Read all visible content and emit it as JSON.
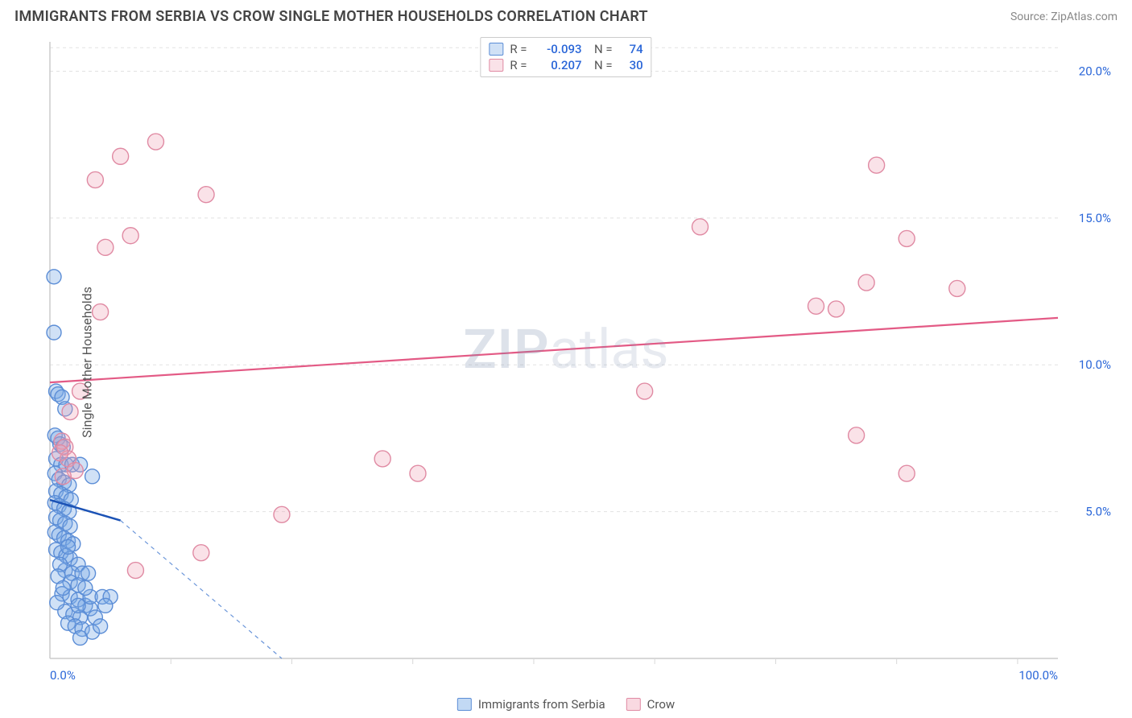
{
  "header": {
    "title": "IMMIGRANTS FROM SERBIA VS CROW SINGLE MOTHER HOUSEHOLDS CORRELATION CHART",
    "source_label": "Source:",
    "source_name": "ZipAtlas.com"
  },
  "ylabel": "Single Mother Households",
  "watermark": {
    "part1": "ZIP",
    "part2": "atlas"
  },
  "chart": {
    "type": "scatter",
    "background_color": "#ffffff",
    "grid_color": "#e2e2e2",
    "axis_color": "#cccccc",
    "tick_label_color": "#2a66d8",
    "xlim": [
      0,
      100
    ],
    "ylim": [
      0,
      21
    ],
    "xtick_values": [
      0,
      100
    ],
    "xtick_labels": [
      "0.0%",
      "100.0%"
    ],
    "xminor_positions": [
      12,
      24,
      36,
      48,
      60,
      72,
      84,
      96
    ],
    "ytick_values": [
      5,
      10,
      15,
      20
    ],
    "ytick_labels": [
      "5.0%",
      "10.0%",
      "15.0%",
      "20.0%"
    ],
    "series": [
      {
        "key": "serbia",
        "label": "Immigrants from Serbia",
        "fill_color": "rgba(120,170,230,0.35)",
        "stroke_color": "#5b8dd6",
        "marker_radius": 9,
        "R": "-0.093",
        "N": "74",
        "trend": {
          "solid": {
            "x1": 0,
            "y1": 5.4,
            "x2": 7,
            "y2": 4.7,
            "color": "#1b52b5",
            "width": 2.5
          },
          "dashed": {
            "x1": 7,
            "y1": 4.7,
            "x2": 23,
            "y2": 0,
            "color": "#6a95d9",
            "width": 1.2,
            "dash": "5 5"
          }
        },
        "points": [
          [
            0.4,
            13.0
          ],
          [
            0.4,
            11.1
          ],
          [
            0.6,
            9.1
          ],
          [
            0.8,
            9.0
          ],
          [
            1.2,
            8.9
          ],
          [
            1.5,
            8.5
          ],
          [
            0.5,
            7.6
          ],
          [
            0.8,
            7.5
          ],
          [
            1.0,
            7.3
          ],
          [
            1.3,
            7.2
          ],
          [
            0.6,
            6.8
          ],
          [
            1.1,
            6.6
          ],
          [
            1.6,
            6.6
          ],
          [
            2.2,
            6.6
          ],
          [
            3.0,
            6.6
          ],
          [
            4.2,
            6.2
          ],
          [
            0.5,
            6.3
          ],
          [
            0.9,
            6.1
          ],
          [
            1.4,
            6.0
          ],
          [
            1.9,
            5.9
          ],
          [
            0.6,
            5.7
          ],
          [
            1.1,
            5.6
          ],
          [
            1.6,
            5.5
          ],
          [
            2.1,
            5.4
          ],
          [
            0.5,
            5.3
          ],
          [
            0.9,
            5.2
          ],
          [
            1.4,
            5.1
          ],
          [
            1.9,
            5.0
          ],
          [
            0.6,
            4.8
          ],
          [
            1.0,
            4.7
          ],
          [
            1.5,
            4.6
          ],
          [
            2.0,
            4.5
          ],
          [
            0.5,
            4.3
          ],
          [
            0.9,
            4.2
          ],
          [
            1.4,
            4.1
          ],
          [
            1.8,
            4.0
          ],
          [
            2.3,
            3.9
          ],
          [
            0.6,
            3.7
          ],
          [
            1.1,
            3.6
          ],
          [
            1.6,
            3.5
          ],
          [
            2.0,
            3.4
          ],
          [
            2.8,
            3.2
          ],
          [
            1.5,
            3.0
          ],
          [
            2.2,
            2.9
          ],
          [
            3.2,
            2.9
          ],
          [
            2.0,
            2.6
          ],
          [
            2.8,
            2.5
          ],
          [
            3.8,
            2.9
          ],
          [
            1.2,
            2.2
          ],
          [
            2.0,
            2.1
          ],
          [
            2.8,
            2.0
          ],
          [
            3.5,
            1.8
          ],
          [
            1.5,
            1.6
          ],
          [
            2.3,
            1.5
          ],
          [
            3.0,
            1.4
          ],
          [
            4.0,
            1.7
          ],
          [
            1.8,
            1.2
          ],
          [
            2.5,
            1.1
          ],
          [
            3.2,
            1.0
          ],
          [
            2.8,
            1.8
          ],
          [
            4.0,
            2.1
          ],
          [
            5.2,
            2.1
          ],
          [
            6.0,
            2.1
          ],
          [
            3.5,
            2.4
          ],
          [
            4.5,
            1.4
          ],
          [
            5.5,
            1.8
          ],
          [
            4.2,
            0.9
          ],
          [
            3.0,
            0.7
          ],
          [
            5.0,
            1.1
          ],
          [
            1.0,
            3.2
          ],
          [
            1.8,
            3.8
          ],
          [
            0.8,
            2.8
          ],
          [
            1.3,
            2.4
          ],
          [
            0.7,
            1.9
          ]
        ]
      },
      {
        "key": "crow",
        "label": "Crow",
        "fill_color": "rgba(240,160,180,0.30)",
        "stroke_color": "#e08aa3",
        "marker_radius": 10,
        "R": "0.207",
        "N": "30",
        "trend": {
          "solid": {
            "x1": 0,
            "y1": 9.4,
            "x2": 100,
            "y2": 11.6,
            "color": "#e35a85",
            "width": 2.2
          }
        },
        "points": [
          [
            10.5,
            17.6
          ],
          [
            7.0,
            17.1
          ],
          [
            4.5,
            16.3
          ],
          [
            15.5,
            15.8
          ],
          [
            8.0,
            14.4
          ],
          [
            5.5,
            14.0
          ],
          [
            5.0,
            11.8
          ],
          [
            3.0,
            9.1
          ],
          [
            2.0,
            8.4
          ],
          [
            1.2,
            7.4
          ],
          [
            1.5,
            7.2
          ],
          [
            1.8,
            6.8
          ],
          [
            2.5,
            6.4
          ],
          [
            33.0,
            6.8
          ],
          [
            36.5,
            6.3
          ],
          [
            23.0,
            4.9
          ],
          [
            15.0,
            3.6
          ],
          [
            8.5,
            3.0
          ],
          [
            64.5,
            14.7
          ],
          [
            76.0,
            12.0
          ],
          [
            81.0,
            12.8
          ],
          [
            85.0,
            14.3
          ],
          [
            90.0,
            12.6
          ],
          [
            82.0,
            16.8
          ],
          [
            59.0,
            9.1
          ],
          [
            80.0,
            7.6
          ],
          [
            85.0,
            6.3
          ],
          [
            78.0,
            11.9
          ],
          [
            1.0,
            7.0
          ],
          [
            1.3,
            6.2
          ]
        ]
      }
    ]
  },
  "top_legend": {
    "labels": {
      "R": "R =",
      "N": "N ="
    }
  },
  "bottom_legend": {
    "items": [
      {
        "label": "Immigrants from Serbia",
        "fill": "rgba(120,170,230,0.45)",
        "border": "#5b8dd6"
      },
      {
        "label": "Crow",
        "fill": "rgba(240,160,180,0.40)",
        "border": "#e08aa3"
      }
    ]
  }
}
